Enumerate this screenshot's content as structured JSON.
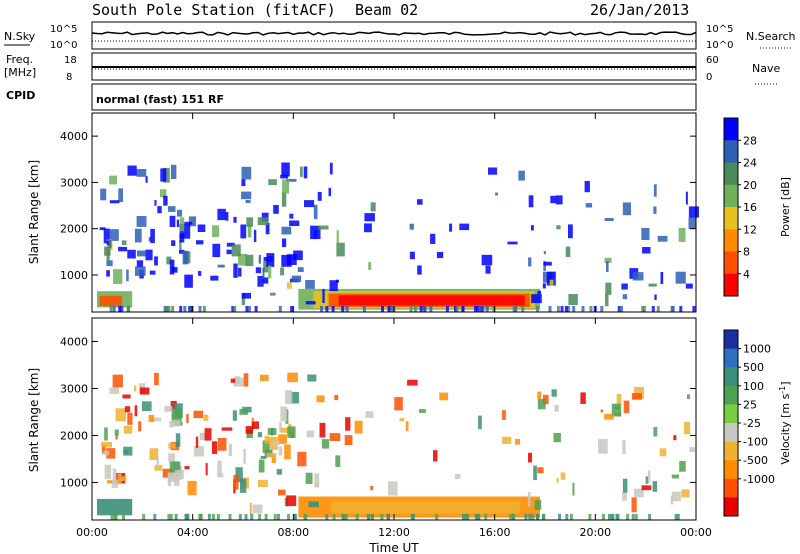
{
  "header": {
    "station": "South Pole Station (fitACF)",
    "beam": "Beam 02",
    "date": "26/Jan/2013"
  },
  "status_panels": {
    "nsky_label": "N.Sky",
    "nsky_ticks": [
      "10^5",
      "10^0"
    ],
    "nsearch_label": "N.Search",
    "nsearch_ticks": [
      "10^5",
      "10^0"
    ],
    "freq_label": "Freq.",
    "freq_unit": "[MHz]",
    "freq_ticks": [
      "18",
      "8"
    ],
    "nave_label": "Nave",
    "nave_ticks": [
      "60",
      "0"
    ],
    "cpid_label": "CPID",
    "cpid_value": "normal (fast) 151 RF"
  },
  "chart_data": [
    {
      "type": "heatmap",
      "name": "power",
      "ylabel": "Slant Range [km]",
      "yticks": [
        "1000",
        "2000",
        "3000",
        "4000"
      ],
      "ylim": [
        200,
        4500
      ],
      "xticks": [
        "00:00",
        "04:00",
        "08:00",
        "12:00",
        "16:00",
        "20:00",
        "00:00"
      ],
      "xlim": [
        0,
        24
      ],
      "colorbar": {
        "label": "Power [dB]",
        "ticks": [
          "4",
          "8",
          "12",
          "16",
          "20",
          "24",
          "28"
        ],
        "colors": [
          "#0000ff",
          "#2e5fb5",
          "#4a8a5a",
          "#6fb05a",
          "#e8c020",
          "#ff8c00",
          "#ff5000",
          "#ff0000"
        ]
      }
    },
    {
      "type": "heatmap",
      "name": "velocity",
      "ylabel": "Slant Range [km]",
      "yticks": [
        "1000",
        "2000",
        "3000",
        "4000"
      ],
      "ylim": [
        200,
        4500
      ],
      "xticks": [
        "00:00",
        "04:00",
        "08:00",
        "12:00",
        "16:00",
        "20:00",
        "00:00"
      ],
      "xlim": [
        0,
        24
      ],
      "xlabel": "Time UT",
      "colorbar": {
        "label": "Velocity [m s",
        "label_sup": "-1",
        "label_tail": "]",
        "ticks": [
          "1000",
          "500",
          "100",
          "25",
          "-25",
          "-100",
          "-500",
          "-1000"
        ],
        "colors": [
          "#1a2fa0",
          "#2f6fc0",
          "#3a8f7a",
          "#4fa04f",
          "#7acc40",
          "#c8c8c0",
          "#f0b030",
          "#ff8c00",
          "#ff5000",
          "#e80000"
        ]
      }
    }
  ]
}
